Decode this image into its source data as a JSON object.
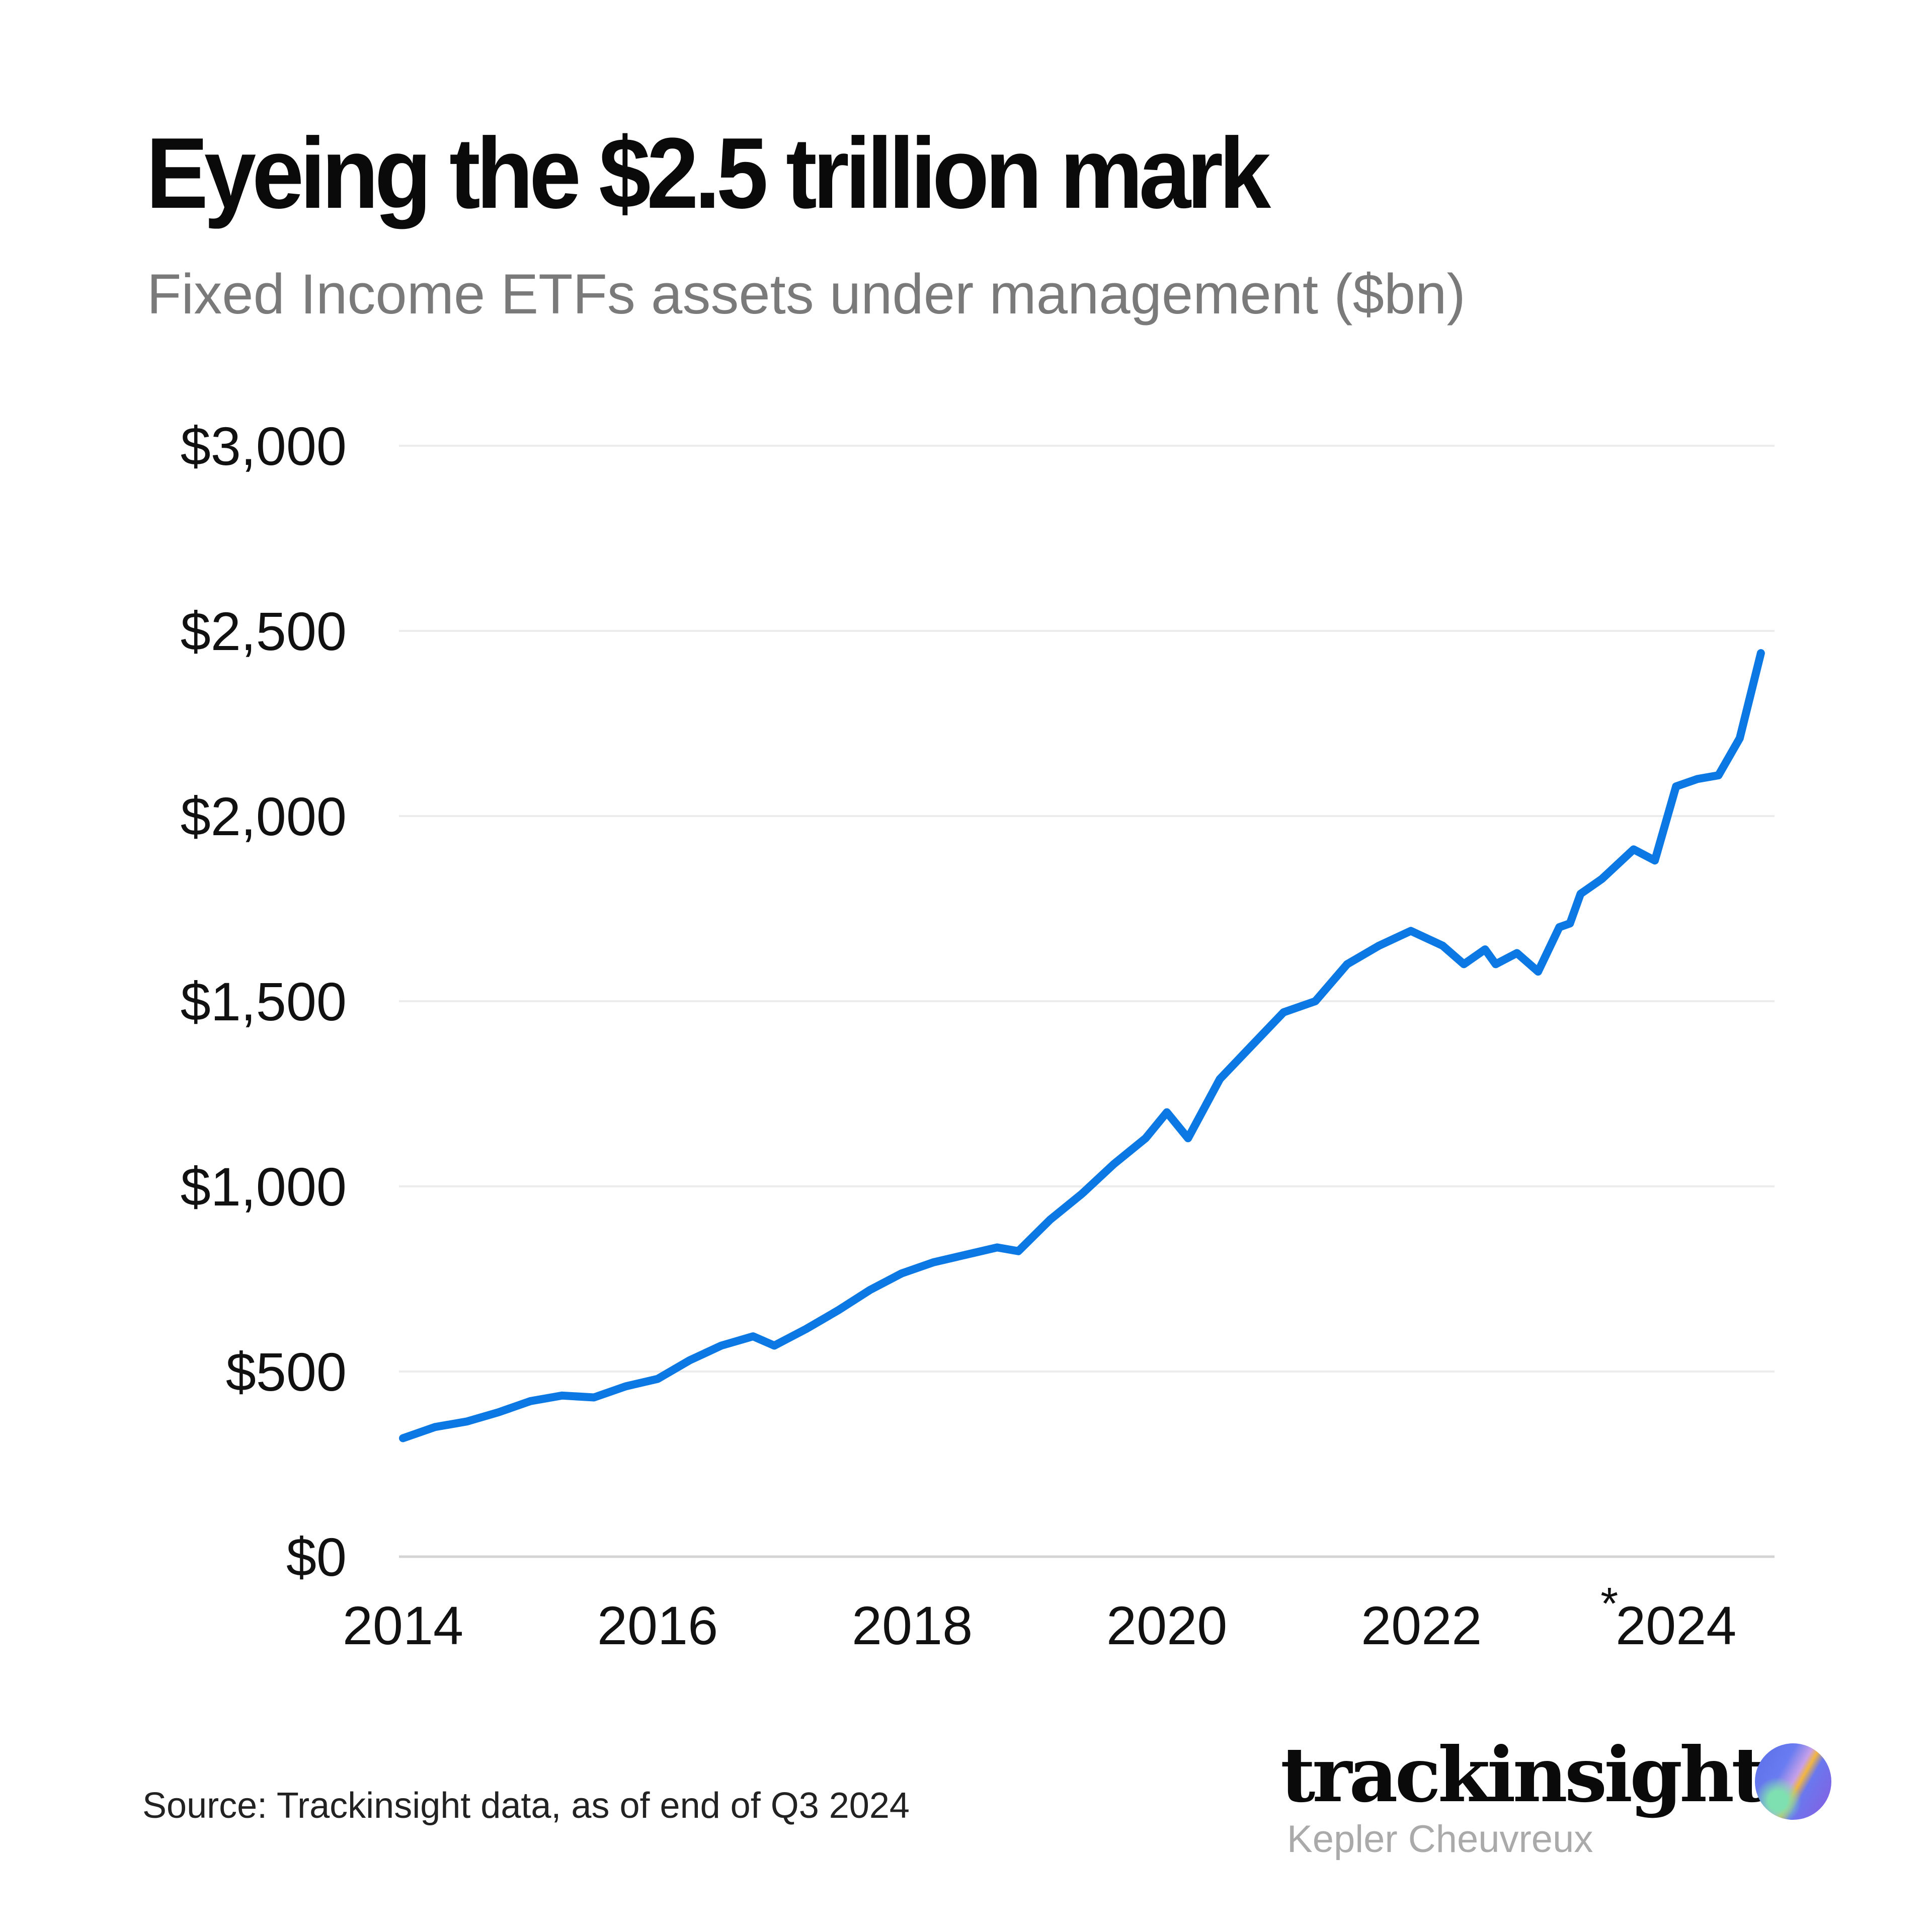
{
  "header": {
    "title": "Eyeing the $2.5 trillion mark",
    "subtitle": "Fixed Income ETFs assets under management ($bn)"
  },
  "footer": {
    "source": "Source: Trackinsight data, as of end of Q3 2024",
    "logo": "trackinsight",
    "logo_sub": "Kepler Cheuvreux"
  },
  "chart_data": {
    "type": "line",
    "title": "Eyeing the $2.5 trillion mark",
    "subtitle": "Fixed Income ETFs assets under management ($bn)",
    "xlabel": "",
    "ylabel": "",
    "ylim": [
      0,
      3000
    ],
    "xlim": [
      "2014-01",
      "2024-09"
    ],
    "grid": "horizontal",
    "line_color": "#0B78E3",
    "y_ticks": [
      "$0",
      "$500",
      "$1,000",
      "$1,500",
      "$2,000",
      "$2,500",
      "$3,000"
    ],
    "y_tick_values": [
      0,
      500,
      1000,
      1500,
      2000,
      2500,
      3000
    ],
    "x_ticks": [
      "2014",
      "2016",
      "2018",
      "2020",
      "2022",
      "2024"
    ],
    "x_tick_annotation": {
      "tick": "2024",
      "text": "*"
    },
    "x": [
      "2014-01",
      "2014-04",
      "2014-07",
      "2014-10",
      "2015-01",
      "2015-04",
      "2015-07",
      "2015-10",
      "2016-01",
      "2016-04",
      "2016-07",
      "2016-10",
      "2016-12",
      "2017-03",
      "2017-06",
      "2017-09",
      "2017-12",
      "2018-03",
      "2018-06",
      "2018-09",
      "2018-11",
      "2019-02",
      "2019-05",
      "2019-08",
      "2019-11",
      "2020-01",
      "2020-03",
      "2020-06",
      "2020-09",
      "2020-12",
      "2021-03",
      "2021-06",
      "2021-09",
      "2021-12",
      "2022-03",
      "2022-05",
      "2022-07",
      "2022-08",
      "2022-10",
      "2022-12",
      "2023-02",
      "2023-03",
      "2023-04",
      "2023-06",
      "2023-09",
      "2023-11",
      "2024-01",
      "2024-03",
      "2024-05",
      "2024-07",
      "2024-09"
    ],
    "values": [
      320,
      350,
      365,
      390,
      420,
      435,
      430,
      460,
      480,
      530,
      570,
      595,
      570,
      615,
      665,
      720,
      765,
      795,
      815,
      835,
      825,
      910,
      980,
      1060,
      1130,
      1200,
      1130,
      1290,
      1380,
      1470,
      1500,
      1600,
      1650,
      1690,
      1650,
      1600,
      1640,
      1600,
      1630,
      1580,
      1700,
      1710,
      1790,
      1830,
      1910,
      1880,
      2080,
      2100,
      2110,
      2210,
      2440
    ]
  }
}
